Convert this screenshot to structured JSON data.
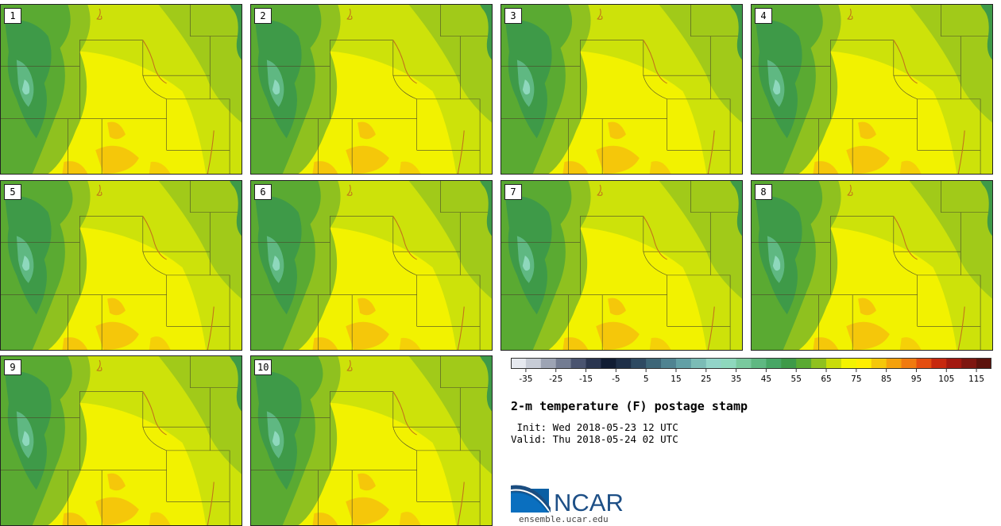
{
  "panels": [
    {
      "label": "1"
    },
    {
      "label": "2"
    },
    {
      "label": "3"
    },
    {
      "label": "4"
    },
    {
      "label": "5"
    },
    {
      "label": "6"
    },
    {
      "label": "7"
    },
    {
      "label": "8"
    },
    {
      "label": "9"
    },
    {
      "label": "10"
    }
  ],
  "colorbar": {
    "colors": [
      "#e6e9ef",
      "#c7ccd6",
      "#9da4b4",
      "#737c92",
      "#4a5470",
      "#2a3550",
      "#101c33",
      "#1e2f48",
      "#2e4a62",
      "#3d6678",
      "#4f8391",
      "#62a0a6",
      "#7bbcb6",
      "#92d4c8",
      "#8ed8bd",
      "#79c99e",
      "#5fb882",
      "#47a665",
      "#3e9a48",
      "#5aaa32",
      "#8fc11f",
      "#c9dc0a",
      "#f3f300",
      "#ffee00",
      "#f5c70a",
      "#f4a10c",
      "#f07a10",
      "#e44d10",
      "#c7280f",
      "#a31810",
      "#7e1610",
      "#5c120c"
    ],
    "tick_labels": [
      "-35",
      "-25",
      "-15",
      "-5",
      "5",
      "15",
      "25",
      "35",
      "45",
      "55",
      "65",
      "75",
      "85",
      "95",
      "105",
      "115"
    ]
  },
  "title": "2-m temperature (F) postage stamp",
  "init": " Init: Wed 2018-05-23 12 UTC",
  "valid": "Valid: Thu 2018-05-24 02 UTC",
  "logo": {
    "text": "NCAR",
    "url": "ensemble.ucar.edu"
  },
  "map_colors": {
    "bg": "#f2f200",
    "light_green": "#cde20a",
    "mid_green": "#8fc11f",
    "green": "#5aaa32",
    "dark_green": "#3e9a48",
    "teal": "#5fb882",
    "orange": "#f5c70a",
    "water": "#3e9a48",
    "river": "#c2731a",
    "border": "#4a4a2a"
  }
}
